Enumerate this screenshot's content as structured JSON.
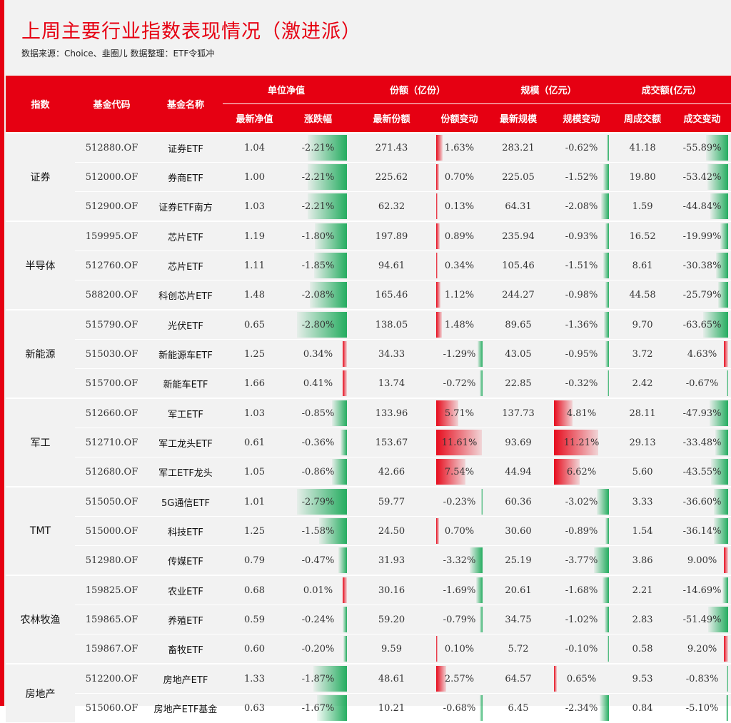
{
  "title": "上周主要行业指数表现情况（激进派）",
  "source": "数据来源：Choice、韭圈儿   数据整理：ETF令狐冲",
  "colors": {
    "accent": "#e60012",
    "up": "#e60012",
    "down": "#00a046"
  },
  "headers": {
    "index": "指数",
    "code": "基金代码",
    "name": "基金名称",
    "nav_group": "单位净值",
    "share_group": "份额（亿份）",
    "scale_group": "规模（亿元）",
    "volume_group": "成交额(亿元）",
    "latest_nav": "最新净值",
    "change": "涨跌幅",
    "latest_share": "最新份额",
    "share_change": "份额变动",
    "latest_scale": "最新规模",
    "scale_change": "规模变动",
    "weekly_volume": "周成交额",
    "volume_change": "成交变动"
  },
  "groups": [
    {
      "name": "证券",
      "rows": [
        {
          "code": "512880.OF",
          "name": "证券ETF",
          "nav": "1.04",
          "chg": "-2.21%",
          "share": "271.43",
          "share_chg": "1.63%",
          "scale": "283.21",
          "scale_chg": "-0.62%",
          "vol": "41.18",
          "vol_chg": "-55.89%"
        },
        {
          "code": "512000.OF",
          "name": "券商ETF",
          "nav": "1.00",
          "chg": "-2.21%",
          "share": "225.62",
          "share_chg": "0.70%",
          "scale": "225.05",
          "scale_chg": "-1.52%",
          "vol": "19.80",
          "vol_chg": "-53.42%"
        },
        {
          "code": "512900.OF",
          "name": "证券ETF南方",
          "nav": "1.03",
          "chg": "-2.21%",
          "share": "62.32",
          "share_chg": "0.13%",
          "scale": "64.31",
          "scale_chg": "-2.08%",
          "vol": "1.59",
          "vol_chg": "-44.84%"
        }
      ]
    },
    {
      "name": "半导体",
      "rows": [
        {
          "code": "159995.OF",
          "name": "芯片ETF",
          "nav": "1.19",
          "chg": "-1.80%",
          "share": "197.89",
          "share_chg": "0.89%",
          "scale": "235.94",
          "scale_chg": "-0.93%",
          "vol": "16.52",
          "vol_chg": "-19.99%"
        },
        {
          "code": "512760.OF",
          "name": "芯片ETF",
          "nav": "1.11",
          "chg": "-1.85%",
          "share": "94.61",
          "share_chg": "0.34%",
          "scale": "105.46",
          "scale_chg": "-1.51%",
          "vol": "8.61",
          "vol_chg": "-30.38%"
        },
        {
          "code": "588200.OF",
          "name": "科创芯片ETF",
          "nav": "1.48",
          "chg": "-2.08%",
          "share": "165.46",
          "share_chg": "1.12%",
          "scale": "244.27",
          "scale_chg": "-0.98%",
          "vol": "44.58",
          "vol_chg": "-25.79%"
        }
      ]
    },
    {
      "name": "新能源",
      "rows": [
        {
          "code": "515790.OF",
          "name": "光伏ETF",
          "nav": "0.65",
          "chg": "-2.80%",
          "share": "138.05",
          "share_chg": "1.48%",
          "scale": "89.65",
          "scale_chg": "-1.36%",
          "vol": "9.70",
          "vol_chg": "-63.65%"
        },
        {
          "code": "515030.OF",
          "name": "新能源车ETF",
          "nav": "1.25",
          "chg": "0.34%",
          "share": "34.33",
          "share_chg": "-1.29%",
          "scale": "43.05",
          "scale_chg": "-0.95%",
          "vol": "3.72",
          "vol_chg": "4.63%"
        },
        {
          "code": "515700.OF",
          "name": "新能车ETF",
          "nav": "1.66",
          "chg": "0.41%",
          "share": "13.74",
          "share_chg": "-0.72%",
          "scale": "22.85",
          "scale_chg": "-0.32%",
          "vol": "2.42",
          "vol_chg": "-0.67%"
        }
      ]
    },
    {
      "name": "军工",
      "rows": [
        {
          "code": "512660.OF",
          "name": "军工ETF",
          "nav": "1.03",
          "chg": "-0.85%",
          "share": "133.96",
          "share_chg": "5.71%",
          "scale": "137.73",
          "scale_chg": "4.81%",
          "vol": "28.11",
          "vol_chg": "-47.93%"
        },
        {
          "code": "512710.OF",
          "name": "军工龙头ETF",
          "nav": "0.61",
          "chg": "-0.36%",
          "share": "153.67",
          "share_chg": "11.61%",
          "scale": "93.69",
          "scale_chg": "11.21%",
          "vol": "29.13",
          "vol_chg": "-33.48%"
        },
        {
          "code": "512680.OF",
          "name": "军工ETF龙头",
          "nav": "1.05",
          "chg": "-0.86%",
          "share": "42.66",
          "share_chg": "7.54%",
          "scale": "44.94",
          "scale_chg": "6.62%",
          "vol": "5.60",
          "vol_chg": "-43.55%"
        }
      ]
    },
    {
      "name": "TMT",
      "rows": [
        {
          "code": "515050.OF",
          "name": "5G通信ETF",
          "nav": "1.01",
          "chg": "-2.79%",
          "share": "59.77",
          "share_chg": "-0.23%",
          "scale": "60.36",
          "scale_chg": "-3.02%",
          "vol": "3.33",
          "vol_chg": "-36.60%"
        },
        {
          "code": "515000.OF",
          "name": "科技ETF",
          "nav": "1.25",
          "chg": "-1.58%",
          "share": "24.50",
          "share_chg": "0.70%",
          "scale": "30.60",
          "scale_chg": "-0.89%",
          "vol": "1.54",
          "vol_chg": "-36.14%"
        },
        {
          "code": "512980.OF",
          "name": "传媒ETF",
          "nav": "0.79",
          "chg": "-0.47%",
          "share": "31.93",
          "share_chg": "-3.32%",
          "scale": "25.19",
          "scale_chg": "-3.77%",
          "vol": "3.86",
          "vol_chg": "9.00%"
        }
      ]
    },
    {
      "name": "农林牧渔",
      "rows": [
        {
          "code": "159825.OF",
          "name": "农业ETF",
          "nav": "0.68",
          "chg": "0.01%",
          "share": "30.16",
          "share_chg": "-1.69%",
          "scale": "20.61",
          "scale_chg": "-1.68%",
          "vol": "2.21",
          "vol_chg": "-14.69%"
        },
        {
          "code": "159865.OF",
          "name": "养殖ETF",
          "nav": "0.59",
          "chg": "-0.24%",
          "share": "59.20",
          "share_chg": "-0.79%",
          "scale": "34.75",
          "scale_chg": "-1.02%",
          "vol": "2.83",
          "vol_chg": "-51.49%"
        },
        {
          "code": "159867.OF",
          "name": "畜牧ETF",
          "nav": "0.60",
          "chg": "-0.20%",
          "share": "9.59",
          "share_chg": "0.10%",
          "scale": "5.72",
          "scale_chg": "-0.10%",
          "vol": "0.58",
          "vol_chg": "9.20%"
        }
      ]
    },
    {
      "name": "房地产",
      "rows": [
        {
          "code": "512200.OF",
          "name": "房地产ETF",
          "nav": "1.33",
          "chg": "-1.87%",
          "share": "48.61",
          "share_chg": "2.57%",
          "scale": "64.57",
          "scale_chg": "0.65%",
          "vol": "9.53",
          "vol_chg": "-0.83%"
        },
        {
          "code": "515060.OF",
          "name": "房地产ETF基金",
          "nav": "0.63",
          "chg": "-1.67%",
          "share": "10.21",
          "share_chg": "-0.68%",
          "scale": "6.45",
          "scale_chg": "-2.34%",
          "vol": "0.84",
          "vol_chg": "-5.10%"
        }
      ]
    }
  ]
}
